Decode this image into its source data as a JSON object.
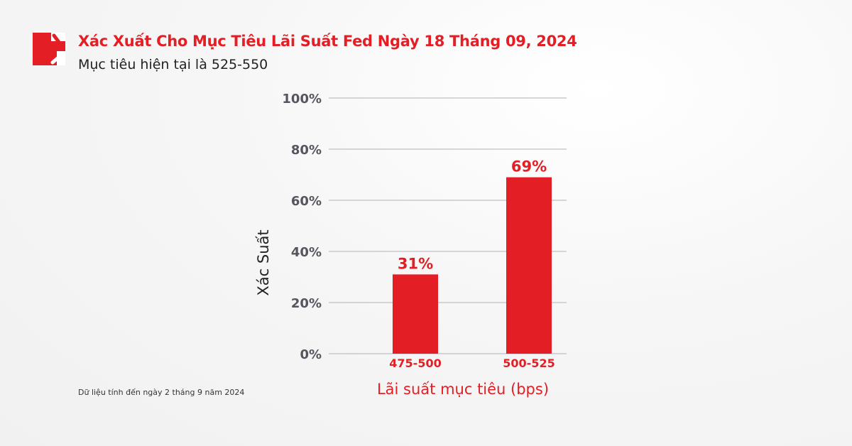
{
  "header": {
    "title": "Xác Xuất Cho Mục Tiêu Lãi Suất Fed Ngày 18 Tháng 09, 2024",
    "subtitle": "Mục tiêu hiện tại là 525-550"
  },
  "footnote": "Dữ liệu tính đến ngày 2 tháng 9 năm 2024",
  "colors": {
    "accent": "#e31e24",
    "axis_text": "#55555f",
    "grid": "#c8c8d0"
  },
  "chart_data": {
    "type": "bar",
    "categories": [
      "475-500",
      "500-525"
    ],
    "values": [
      31,
      69
    ],
    "data_labels": [
      "31%",
      "69%"
    ],
    "xlabel": "Lãi suất mục tiêu (bps)",
    "ylabel": "Xác Suất",
    "ylim": [
      0,
      100
    ],
    "yticks": [
      "0%",
      "20%",
      "40%",
      "60%",
      "80%",
      "100%"
    ],
    "grid": true
  }
}
